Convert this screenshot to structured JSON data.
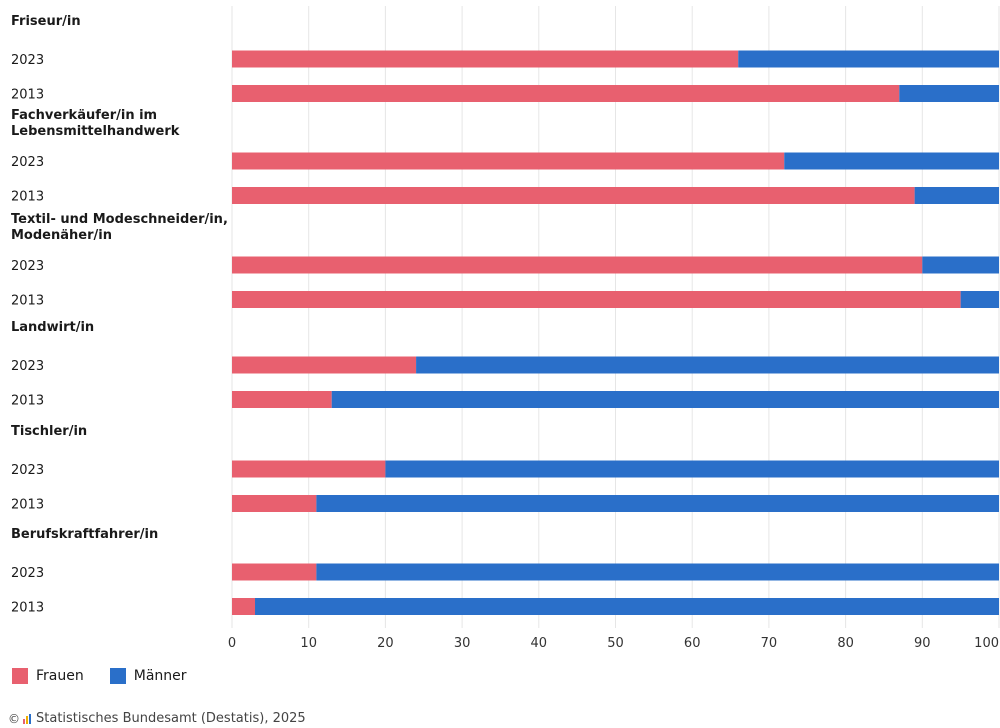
{
  "chart_data": {
    "type": "bar",
    "orientation": "horizontal",
    "stacked": true,
    "xlim": [
      0,
      100
    ],
    "xticks": [
      0,
      10,
      20,
      30,
      40,
      50,
      60,
      70,
      80,
      90,
      100
    ],
    "grid": true,
    "groups": [
      {
        "label": "Friseur/in",
        "rows": [
          {
            "year": "2023",
            "frauen": 66,
            "maenner": 34
          },
          {
            "year": "2013",
            "frauen": 87,
            "maenner": 13
          }
        ]
      },
      {
        "label": "Fachverkäufer/in im Lebensmittelhandwerk",
        "rows": [
          {
            "year": "2023",
            "frauen": 72,
            "maenner": 28
          },
          {
            "year": "2013",
            "frauen": 89,
            "maenner": 11
          }
        ]
      },
      {
        "label": "Textil- und Modeschneider/in, Modenäher/in",
        "rows": [
          {
            "year": "2023",
            "frauen": 90,
            "maenner": 10
          },
          {
            "year": "2013",
            "frauen": 95,
            "maenner": 5
          }
        ]
      },
      {
        "label": "Landwirt/in",
        "rows": [
          {
            "year": "2023",
            "frauen": 24,
            "maenner": 76
          },
          {
            "year": "2013",
            "frauen": 13,
            "maenner": 87
          }
        ]
      },
      {
        "label": "Tischler/in",
        "rows": [
          {
            "year": "2023",
            "frauen": 20,
            "maenner": 80
          },
          {
            "year": "2013",
            "frauen": 11,
            "maenner": 89
          }
        ]
      },
      {
        "label": "Berufskraftfahrer/in",
        "rows": [
          {
            "year": "2023",
            "frauen": 11,
            "maenner": 89
          },
          {
            "year": "2013",
            "frauen": 3,
            "maenner": 97
          }
        ]
      }
    ],
    "legend": [
      {
        "name": "Frauen",
        "color": "#e8606f"
      },
      {
        "name": "Männer",
        "color": "#2a6fc9"
      }
    ],
    "legend_position": "bottom-left"
  },
  "legend_labels": {
    "frauen": "Frauen",
    "maenner": "Männer"
  },
  "footer": {
    "copyright_symbol": "©",
    "source": "Statistisches Bundesamt (Destatis), 2025"
  }
}
